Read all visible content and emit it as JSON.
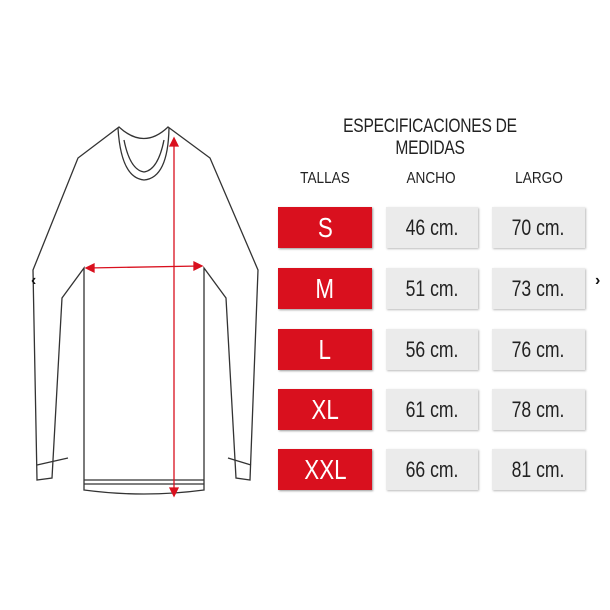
{
  "title": "ESPECIFICACIONES DE MEDIDAS",
  "headers": {
    "size": "TALLAS",
    "width": "ANCHO",
    "length": "LARGO"
  },
  "rows": [
    {
      "size": "S",
      "width": "46 cm.",
      "length": "70 cm."
    },
    {
      "size": "M",
      "width": "51 cm.",
      "length": "73 cm."
    },
    {
      "size": "L",
      "width": "56 cm.",
      "length": "76 cm."
    },
    {
      "size": "XL",
      "width": "61 cm.",
      "length": "78 cm."
    },
    {
      "size": "XXL",
      "width": "66 cm.",
      "length": "81 cm."
    }
  ],
  "nav": {
    "prev_icon": "chevron-left-icon",
    "next_icon": "chevron-right-icon",
    "prev": "‹",
    "next": "›"
  },
  "colors": {
    "accent": "#d9101e",
    "value_bg": "#ebebeb"
  }
}
